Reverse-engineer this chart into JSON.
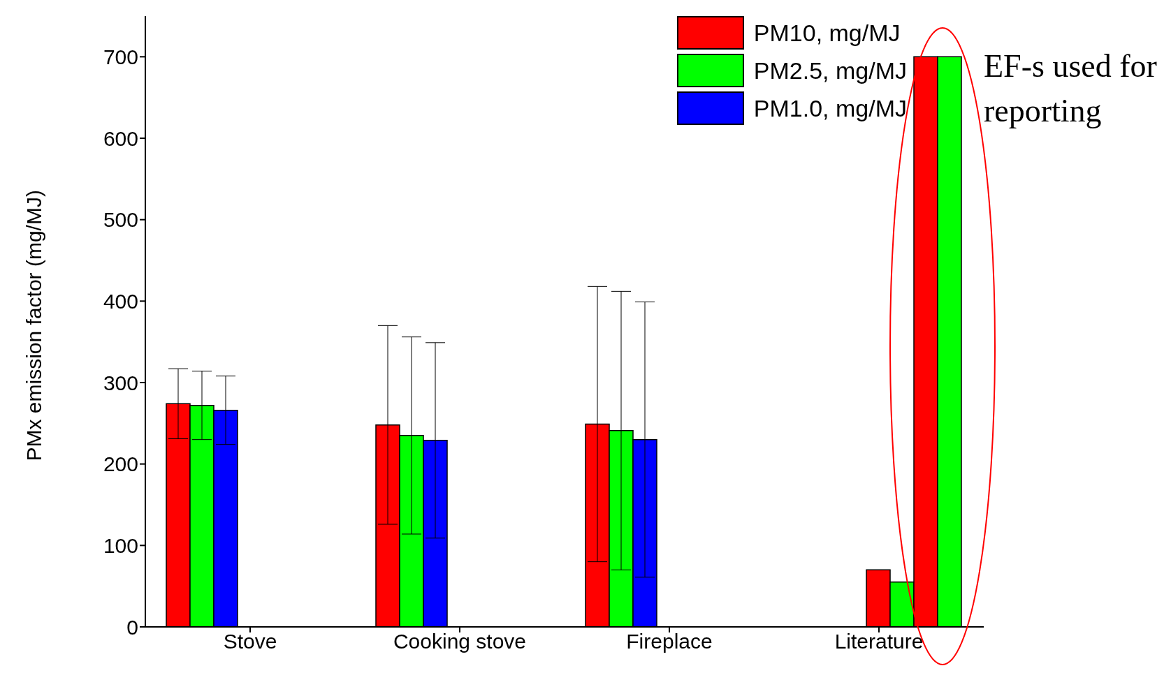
{
  "chart_data": {
    "type": "bar",
    "ylabel": "PMx emission factor (mg/MJ)",
    "categories": [
      "Stove",
      "Cooking stove",
      "Fireplace",
      "Literature"
    ],
    "series": [
      {
        "name": "PM10, mg/MJ",
        "color": "#ff0000",
        "values": [
          274,
          248,
          249,
          null
        ],
        "errors": [
          43,
          122,
          169,
          null
        ]
      },
      {
        "name": "PM2.5, mg/MJ",
        "color": "#00ff00",
        "values": [
          272,
          235,
          241,
          null
        ],
        "errors": [
          42,
          121,
          171,
          null
        ]
      },
      {
        "name": "PM1.0, mg/MJ",
        "color": "#0000ff",
        "values": [
          266,
          229,
          230,
          null
        ],
        "errors": [
          42,
          120,
          169,
          null
        ]
      },
      {
        "color": "#ff0000",
        "values": [
          null,
          null,
          null,
          70
        ]
      },
      {
        "color": "#00ff00",
        "values": [
          null,
          null,
          null,
          55
        ]
      },
      {
        "color": "#ff0000",
        "values": [
          null,
          null,
          null,
          700
        ]
      },
      {
        "color": "#00ff00",
        "values": [
          null,
          null,
          null,
          700
        ]
      }
    ],
    "ylim": [
      0,
      750
    ],
    "yticks": [
      0,
      100,
      200,
      300,
      400,
      500,
      600,
      700
    ],
    "grid": false,
    "legend": "top right",
    "annotations": [
      "EF-s used for reporting"
    ]
  }
}
